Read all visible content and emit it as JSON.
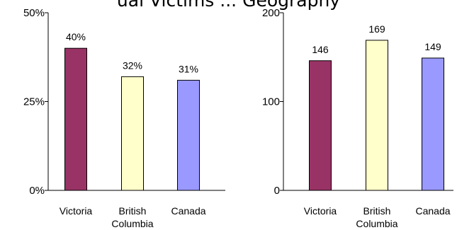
{
  "header": {
    "title_fragment": "ual Victims ... Geography"
  },
  "chart_data": [
    {
      "type": "bar",
      "categories": [
        [
          "Victoria"
        ],
        [
          "British",
          "Columbia"
        ],
        [
          "Canada"
        ]
      ],
      "values": [
        40,
        32,
        31
      ],
      "value_suffix": "%",
      "data_labels": [
        "40%",
        "32%",
        "31%"
      ],
      "yticks": [
        0,
        25,
        50
      ],
      "ytick_labels": [
        "0%",
        "25%",
        "50%"
      ],
      "ylim": [
        0,
        50
      ],
      "grid": false,
      "colors": [
        "#993366",
        "#ffffcc",
        "#9999ff"
      ]
    },
    {
      "type": "bar",
      "categories": [
        [
          "Victoria"
        ],
        [
          "British",
          "Columbia"
        ],
        [
          "Canada"
        ]
      ],
      "values": [
        146,
        169,
        149
      ],
      "value_suffix": "",
      "data_labels": [
        "146",
        "169",
        "149"
      ],
      "yticks": [
        0,
        100,
        200
      ],
      "ytick_labels": [
        "0",
        "100",
        "200"
      ],
      "ylim": [
        0,
        200
      ],
      "grid": false,
      "colors": [
        "#993366",
        "#ffffcc",
        "#9999ff"
      ]
    }
  ]
}
